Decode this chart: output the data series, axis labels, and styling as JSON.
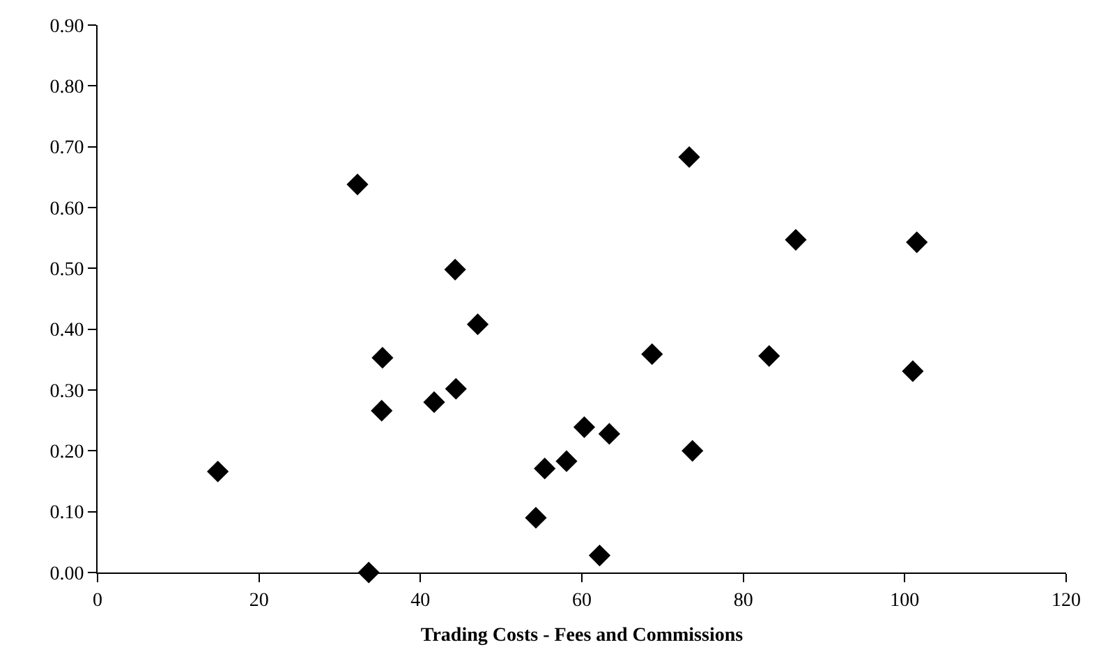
{
  "chart_data": {
    "type": "scatter",
    "xlabel": "Trading Costs - Fees and Commissions",
    "x": [
      14.9,
      32.2,
      33.6,
      35.3,
      35.2,
      41.7,
      44.3,
      44.4,
      47.1,
      54.3,
      55.4,
      58.1,
      60.3,
      63.4,
      62.2,
      73.3,
      68.7,
      73.7,
      86.5,
      83.2,
      101.5,
      101.0
    ],
    "series": [
      {
        "color": "#000000",
        "values": [
          0.166,
          0.638,
          0,
          0.353,
          0.266,
          0.28,
          0.498,
          0.302,
          0.408,
          0.09,
          0.171,
          0.183,
          0.239,
          0.228,
          0.028,
          0.683,
          0.359,
          0.2,
          0.547,
          0.356,
          0.543,
          0.331
        ]
      }
    ],
    "xlim": [
      0,
      120
    ],
    "xticks": [
      0,
      20,
      40,
      60,
      80,
      100,
      120
    ],
    "ylim": [
      0,
      0.9
    ],
    "yticks": [
      {
        "value": 0,
        "label": "0.00"
      },
      {
        "value": 0.1,
        "label": "0.10"
      },
      {
        "value": 0.2,
        "label": "0.20"
      },
      {
        "value": 0.3,
        "label": "0.30"
      },
      {
        "value": 0.4,
        "label": "0.40"
      },
      {
        "value": 0.5,
        "label": "0.50"
      },
      {
        "value": 0.6,
        "label": "0.60"
      },
      {
        "value": 0.7,
        "label": "0.70"
      },
      {
        "value": 0.8,
        "label": "0.80"
      },
      {
        "value": 0.9,
        "label": "0.90"
      }
    ],
    "marker": "diamond"
  }
}
